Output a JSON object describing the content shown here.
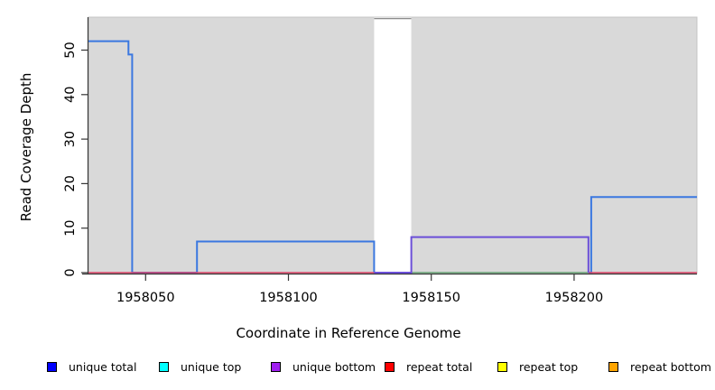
{
  "chart_data": {
    "type": "line",
    "subtype": "step-coverage",
    "title": "",
    "xlabel": "Coordinate in Reference Genome",
    "ylabel": "Read Coverage Depth",
    "xlim": [
      1958030,
      1958243
    ],
    "ylim": [
      0,
      57.6
    ],
    "x_ticks": [
      "1958050",
      "1958100",
      "1958150",
      "1958200"
    ],
    "x_tick_values": [
      1958050,
      1958100,
      1958150,
      1958200
    ],
    "y_ticks": [
      "0",
      "10",
      "20",
      "30",
      "40",
      "50"
    ],
    "y_tick_values": [
      0,
      10,
      20,
      30,
      40,
      50
    ],
    "grid": "off",
    "plot_bg_color": "#d9d9d9",
    "plot_border_color": "#c4c4c4",
    "axis_color": "#363636",
    "gap_region": {
      "x1": 1958130,
      "x2": 1958143,
      "fill": "#ffffff",
      "top_line_value": 57.1,
      "top_line_color": "#8d8d8d"
    },
    "series": [
      {
        "name": "unique total (plotted step line)",
        "color": "#3b78e0",
        "width": 2,
        "points": [
          [
            1958030,
            52
          ],
          [
            1958044,
            52
          ],
          [
            1958044,
            49
          ],
          [
            1958045.3,
            49
          ],
          [
            1958045.3,
            0
          ],
          [
            1958068,
            0
          ],
          [
            1958068,
            7
          ],
          [
            1958130,
            7
          ],
          [
            1958130,
            0
          ],
          [
            1958206,
            0
          ],
          [
            1958206,
            17
          ],
          [
            1958243,
            17
          ]
        ]
      },
      {
        "name": "repeat total baseline",
        "color": "#dd4367",
        "width": 1.6,
        "points": [
          [
            1958030,
            0
          ],
          [
            1958243,
            0
          ]
        ]
      },
      {
        "name": "green baseline segment",
        "color": "#7cc882",
        "width": 1.6,
        "points": [
          [
            1958143,
            0
          ],
          [
            1958205,
            0
          ]
        ]
      },
      {
        "name": "unique bottom (plotted step line)",
        "color": "#6b4fd8",
        "width": 2,
        "points": [
          [
            1958130,
            0
          ],
          [
            1958143,
            0
          ],
          [
            1958143,
            8
          ],
          [
            1958205,
            8
          ],
          [
            1958205,
            0
          ]
        ]
      }
    ],
    "legend": [
      {
        "label": "unique total",
        "color": "#0000ff"
      },
      {
        "label": "unique top",
        "color": "#00ffff"
      },
      {
        "label": "unique bottom",
        "color": "#a020f0"
      },
      {
        "label": "repeat total",
        "color": "#ff0000"
      },
      {
        "label": "repeat top",
        "color": "#ffff00"
      },
      {
        "label": "repeat bottom",
        "color": "#ffa500"
      }
    ],
    "legend_position": "bottom",
    "legend_item_x": [
      52,
      176,
      300,
      426,
      551,
      674
    ]
  },
  "layout_note_visible_text_only": true
}
